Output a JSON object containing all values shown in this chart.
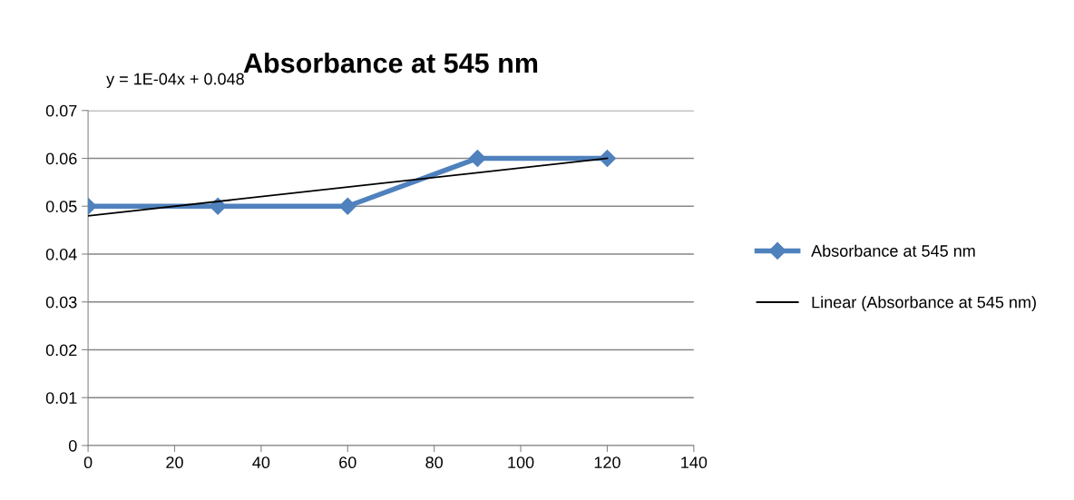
{
  "chart_data": {
    "type": "line",
    "title": "Absorbance at 545 nm",
    "annotations": [
      "y = 1E-04x + 0.048"
    ],
    "x": [
      0,
      30,
      60,
      90,
      120
    ],
    "series": [
      {
        "name": "Absorbance at 545 nm",
        "color": "#4f81bd",
        "values": [
          0.05,
          0.05,
          0.05,
          0.06,
          0.06
        ],
        "marker": "diamond"
      },
      {
        "name": "Linear (Absorbance at 545 nm)",
        "color": "#000000",
        "type": "line",
        "x": [
          0,
          120
        ],
        "values": [
          0.048,
          0.06
        ],
        "marker": "none"
      }
    ],
    "xlim": [
      0,
      140
    ],
    "xticks": [
      0,
      20,
      40,
      60,
      80,
      100,
      120,
      140
    ],
    "ylim": [
      0,
      0.07
    ],
    "yticks": [
      {
        "value": 0,
        "label": "0"
      },
      {
        "value": 0.01,
        "label": "0.01"
      },
      {
        "value": 0.02,
        "label": "0.02"
      },
      {
        "value": 0.03,
        "label": "0.03"
      },
      {
        "value": 0.04,
        "label": "0.04"
      },
      {
        "value": 0.05,
        "label": "0.05"
      },
      {
        "value": 0.06,
        "label": "0.06"
      },
      {
        "value": 0.07,
        "label": "0.07"
      }
    ],
    "grid": "y",
    "legend": "right"
  }
}
